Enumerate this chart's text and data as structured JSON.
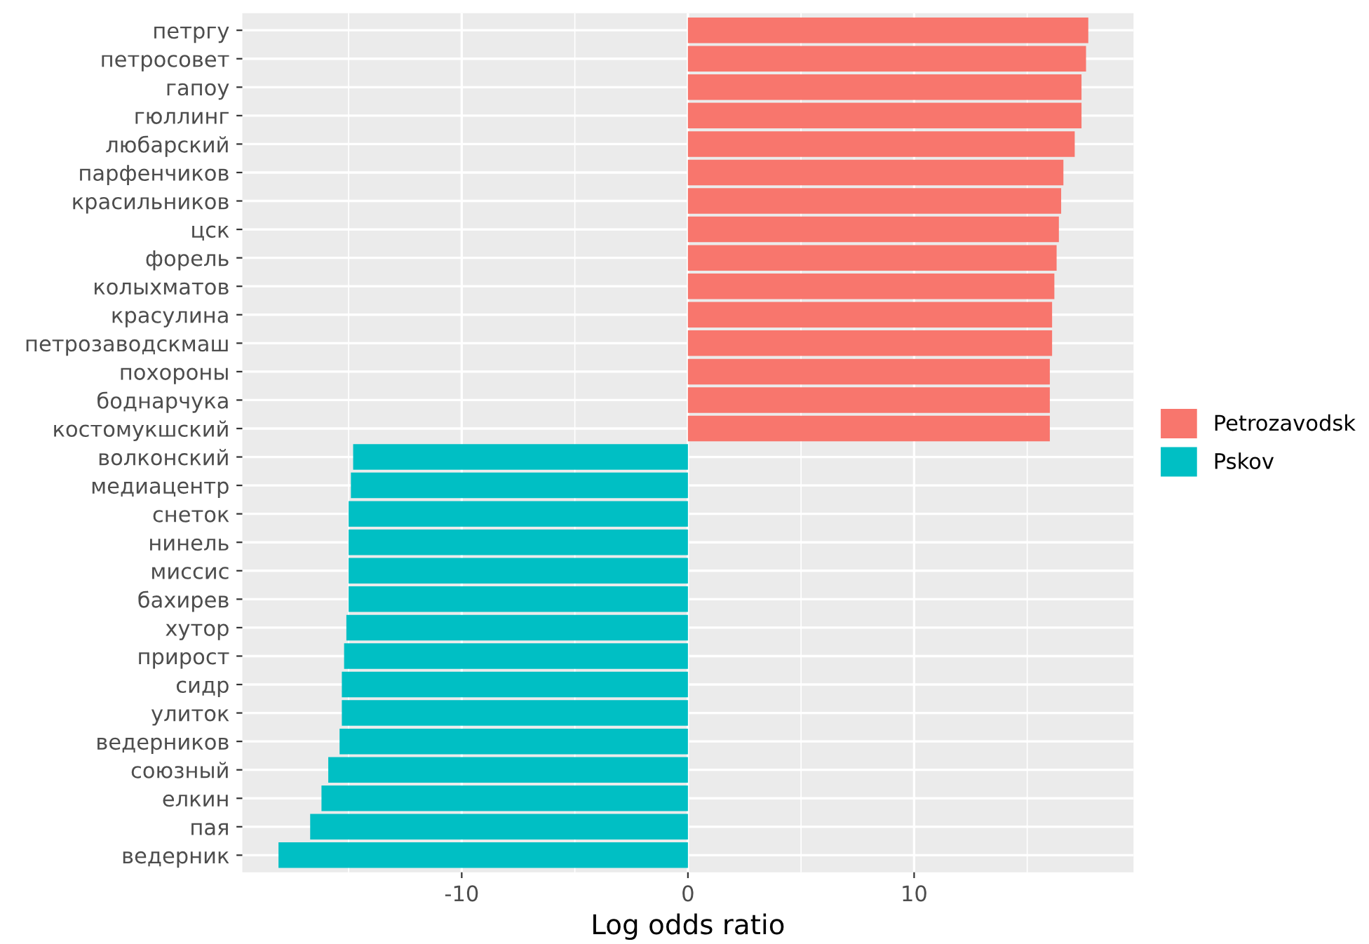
{
  "chart_data": {
    "type": "bar",
    "orientation": "horizontal",
    "xlabel": "Log odds ratio",
    "categories": [
      "петргу",
      "петросовет",
      "гапоу",
      "гюллинг",
      "любарский",
      "парфенчиков",
      "красильников",
      "цск",
      "форель",
      "колыхматов",
      "красулина",
      "петрозаводскмаш",
      "похороны",
      "боднарчука",
      "костомукшский",
      "волконский",
      "медиацентр",
      "снеток",
      "нинель",
      "миссис",
      "бахирев",
      "хутор",
      "прирост",
      "сидр",
      "улиток",
      "ведерников",
      "союзный",
      "елкин",
      "пая",
      "ведерник"
    ],
    "series": [
      {
        "name": "Petrozavodsk",
        "color": "#f8766d",
        "values": [
          17.7,
          17.6,
          17.4,
          17.4,
          17.1,
          16.6,
          16.5,
          16.4,
          16.3,
          16.2,
          16.1,
          16.1,
          16.0,
          16.0,
          16.0,
          null,
          null,
          null,
          null,
          null,
          null,
          null,
          null,
          null,
          null,
          null,
          null,
          null,
          null,
          null
        ]
      },
      {
        "name": "Pskov",
        "color": "#00bfc4",
        "values": [
          null,
          null,
          null,
          null,
          null,
          null,
          null,
          null,
          null,
          null,
          null,
          null,
          null,
          null,
          null,
          -14.8,
          -14.9,
          -15.0,
          -15.0,
          -15.0,
          -15.0,
          -15.1,
          -15.2,
          -15.3,
          -15.3,
          -15.4,
          -15.9,
          -16.2,
          -16.7,
          -18.1
        ]
      }
    ],
    "xlim": [
      -19.7,
      19.7
    ],
    "xticks": [
      -10,
      0,
      10
    ],
    "grid": true,
    "legend": "right"
  }
}
